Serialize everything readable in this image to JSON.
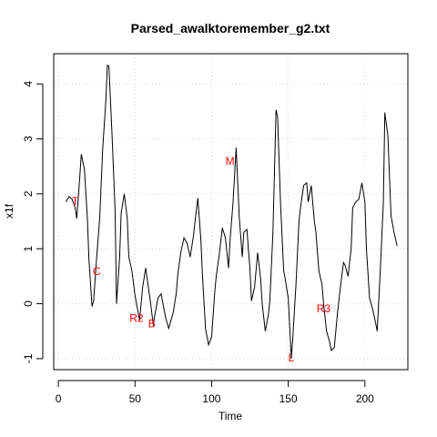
{
  "chart_data": {
    "type": "line",
    "title": "Parsed_awalktoremember_g2.txt",
    "xlabel": "Time",
    "ylabel": "x1f",
    "xlim": [
      -3,
      228
    ],
    "ylim": [
      -1.2,
      4.55
    ],
    "x_ticks": [
      0,
      50,
      100,
      150,
      200
    ],
    "y_ticks": [
      -1,
      0,
      1,
      2,
      3,
      4
    ],
    "grid": true,
    "series_color": "#000000",
    "annotation_color": "#ff0000",
    "series": [
      {
        "x": [
          5,
          7,
          9,
          11,
          12,
          14,
          15,
          17,
          19,
          20,
          22,
          23,
          25,
          27,
          29,
          31,
          32,
          33,
          35,
          37,
          38,
          40,
          41,
          43,
          45,
          46,
          48,
          50,
          53,
          55,
          57,
          60,
          62,
          63,
          65,
          67,
          69,
          70,
          72,
          73,
          75,
          77,
          78,
          80,
          82,
          84,
          86,
          88,
          89,
          91,
          93,
          94,
          96,
          98,
          100,
          102,
          103,
          105,
          107,
          109,
          111,
          112,
          114,
          116,
          118,
          120,
          121,
          123,
          125,
          126,
          128,
          130,
          132,
          133,
          135,
          137,
          138,
          140,
          142,
          143,
          145,
          147,
          148,
          150,
          152,
          153,
          155,
          157,
          158,
          160,
          162,
          163,
          165,
          167,
          168,
          170,
          172,
          173,
          175,
          177,
          178,
          180,
          182,
          184,
          186,
          187,
          189,
          191,
          192,
          194,
          196,
          198,
          200,
          201,
          203,
          205,
          207,
          208,
          210,
          212,
          213,
          215,
          217,
          219,
          221
        ],
        "y": [
          1.85,
          1.95,
          1.9,
          1.75,
          1.55,
          2.3,
          2.72,
          2.45,
          1.55,
          0.8,
          -0.05,
          0.05,
          0.85,
          1.55,
          2.85,
          3.7,
          4.34,
          4.33,
          3.1,
          1.7,
          0.0,
          0.85,
          1.65,
          2.0,
          1.55,
          0.85,
          0.6,
          0.15,
          -0.3,
          0.3,
          0.65,
          0.05,
          -0.4,
          -0.2,
          0.1,
          0.18,
          -0.1,
          -0.25,
          -0.45,
          -0.35,
          -0.15,
          0.2,
          0.55,
          0.95,
          1.2,
          1.1,
          0.85,
          1.2,
          1.45,
          1.92,
          1.15,
          0.55,
          -0.45,
          -0.75,
          -0.6,
          0.2,
          0.5,
          0.9,
          1.38,
          1.2,
          0.65,
          1.15,
          1.85,
          2.84,
          1.58,
          0.85,
          1.3,
          1.35,
          0.65,
          0.05,
          0.3,
          0.93,
          0.45,
          0.0,
          -0.5,
          -0.2,
          0.05,
          1.3,
          3.53,
          3.4,
          1.8,
          0.6,
          0.45,
          0.1,
          -1.0,
          -0.6,
          0.35,
          1.5,
          1.75,
          2.15,
          2.2,
          1.85,
          2.15,
          1.5,
          1.3,
          0.6,
          0.35,
          0.0,
          -0.5,
          -0.7,
          -0.85,
          -0.8,
          -0.2,
          0.3,
          0.75,
          0.7,
          0.5,
          1.0,
          1.75,
          1.85,
          1.9,
          2.2,
          1.85,
          1.0,
          0.1,
          -0.1,
          -0.35,
          -0.5,
          0.6,
          1.85,
          3.48,
          3.05,
          1.6,
          1.3,
          1.05
        ]
      }
    ],
    "annotations": [
      {
        "label": "T",
        "x": 11,
        "y": 1.85
      },
      {
        "label": "C",
        "x": 25,
        "y": 0.58
      },
      {
        "label": "R2",
        "x": 51,
        "y": -0.28
      },
      {
        "label": "B",
        "x": 61,
        "y": -0.38
      },
      {
        "label": "M",
        "x": 112,
        "y": 2.58
      },
      {
        "label": "L",
        "x": 152,
        "y": -1.0
      },
      {
        "label": "R3",
        "x": 173,
        "y": -0.1
      }
    ]
  }
}
